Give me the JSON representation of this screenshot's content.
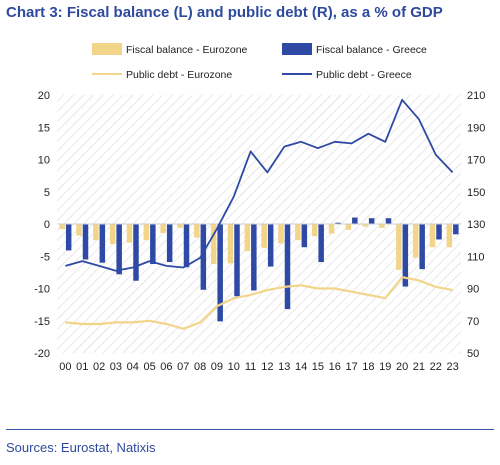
{
  "title": "Chart 3: Fiscal balance (L) and public debt (R), as a % of GDP",
  "source": "Sources: Eurostat, Natixis",
  "colors": {
    "title": "#2e4a9e",
    "source": "#2e4a9e",
    "separator": "#3a57a8",
    "fiscal_eurozone": "#f3d58a",
    "fiscal_greece": "#2f4aa5",
    "debt_eurozone": "#f3d58a",
    "debt_greece": "#2f4aa5",
    "hatch": "#d9d9d9"
  },
  "chart_data": {
    "type": "bar",
    "title": "Chart 3: Fiscal balance (L) and public debt (R), as a % of GDP",
    "categories": [
      "00",
      "01",
      "02",
      "03",
      "04",
      "05",
      "06",
      "07",
      "08",
      "09",
      "10",
      "11",
      "12",
      "13",
      "14",
      "15",
      "16",
      "17",
      "18",
      "19",
      "20",
      "21",
      "22",
      "23"
    ],
    "y_left": {
      "lim": [
        -20,
        20
      ],
      "ticks": [
        "20",
        "15",
        "10",
        "5",
        "0",
        "-5",
        "-10",
        "-15",
        "-20"
      ]
    },
    "y_right": {
      "lim": [
        50,
        210
      ],
      "ticks": [
        "210",
        "190",
        "170",
        "150",
        "130",
        "110",
        "90",
        "70",
        "50"
      ]
    },
    "bar_series": [
      {
        "name": "Fiscal balance - Eurozone",
        "axis": "left",
        "values": [
          -0.8,
          -1.8,
          -2.5,
          -3.1,
          -2.9,
          -2.5,
          -1.4,
          -0.6,
          -2.1,
          -6.2,
          -6.1,
          -4.2,
          -3.7,
          -3.0,
          -2.5,
          -1.9,
          -1.5,
          -0.9,
          -0.4,
          -0.6,
          -7.1,
          -5.2,
          -3.6,
          -3.6
        ]
      },
      {
        "name": "Fiscal balance - Greece",
        "axis": "left",
        "values": [
          -4.1,
          -5.5,
          -6.0,
          -7.8,
          -8.8,
          -6.2,
          -5.9,
          -6.7,
          -10.2,
          -15.1,
          -11.2,
          -10.3,
          -6.6,
          -13.2,
          -3.6,
          -5.9,
          0.2,
          1.0,
          0.9,
          0.9,
          -9.7,
          -7.0,
          -2.4,
          -1.6
        ]
      }
    ],
    "line_series": [
      {
        "name": "Public debt - Eurozone",
        "axis": "right",
        "values": [
          69,
          68,
          68,
          69,
          69,
          70,
          68,
          65,
          69,
          79,
          84,
          86,
          89,
          91,
          92,
          90,
          90,
          88,
          86,
          84,
          97,
          95,
          91,
          89
        ]
      },
      {
        "name": "Public debt - Greece",
        "axis": "right",
        "values": [
          104,
          107,
          104,
          101,
          103,
          107,
          104,
          103,
          109,
          127,
          147,
          175,
          162,
          178,
          181,
          177,
          181,
          180,
          186,
          181,
          207,
          195,
          173,
          162
        ]
      }
    ],
    "legend": [
      {
        "label": "Fiscal balance - Eurozone",
        "kind": "bar",
        "color": "#f3d58a"
      },
      {
        "label": "Fiscal balance - Greece",
        "kind": "bar",
        "color": "#2f4aa5"
      },
      {
        "label": "Public debt - Eurozone",
        "kind": "line",
        "color": "#f3d58a"
      },
      {
        "label": "Public debt - Greece",
        "kind": "line",
        "color": "#2f4aa5"
      }
    ],
    "legend_position": "top",
    "grid": false,
    "background": "diagonal-hatch"
  }
}
